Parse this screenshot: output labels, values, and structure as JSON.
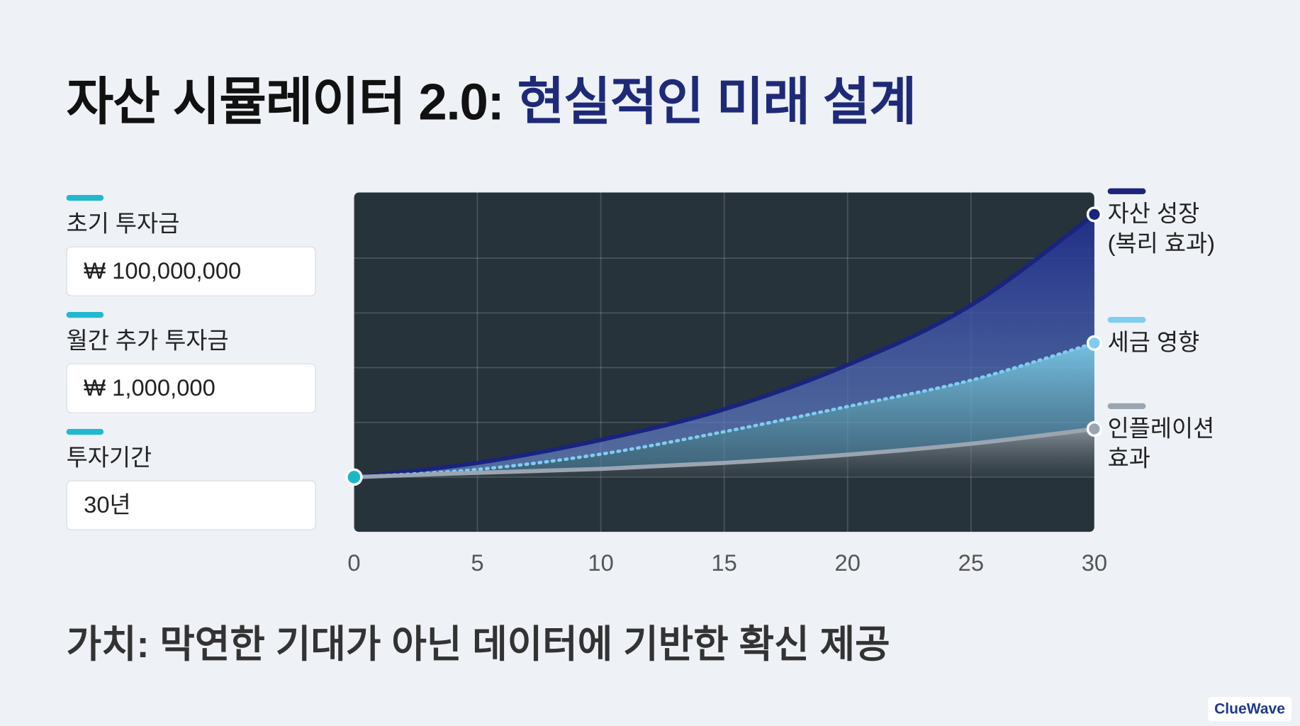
{
  "header": {
    "title_prefix": "자산 시뮬레이터 2.0:",
    "title_highlight": "현실적인 미래 설계"
  },
  "inputs": [
    {
      "label": "초기 투자금",
      "value": "₩ 100,000,000"
    },
    {
      "label": "월간 추가 투자금",
      "value": "₩ 1,000,000"
    },
    {
      "label": "투자기간",
      "value": "30년"
    }
  ],
  "chart_data": {
    "type": "line",
    "x": [
      0,
      5,
      10,
      15,
      20,
      25,
      30
    ],
    "xlim": [
      0,
      30
    ],
    "xticks": [
      0,
      5,
      10,
      15,
      20,
      25,
      30
    ],
    "ylim": [
      -1,
      5.2
    ],
    "yticks": [
      0,
      1,
      2,
      3,
      4
    ],
    "grid": true,
    "start_color": "#1ab7c9",
    "series": [
      {
        "name": "자산 성장 (복리 효과)",
        "color": "#1a237e",
        "style": "solid",
        "values": [
          0,
          0.26,
          0.68,
          1.24,
          2.05,
          3.14,
          4.8
        ]
      },
      {
        "name": "세금 영향",
        "color": "#7fcdf2",
        "style": "dotted",
        "values": [
          0,
          0.14,
          0.42,
          0.83,
          1.29,
          1.77,
          2.45
        ]
      },
      {
        "name": "인플레이션 효과",
        "color": "#9aa5b1",
        "style": "solid",
        "values": [
          0,
          0.08,
          0.15,
          0.26,
          0.41,
          0.61,
          0.88
        ]
      }
    ]
  },
  "footer": {
    "text": "가치: 막연한 기대가 아닌 데이터에 기반한 확신 제공"
  },
  "brand": "ClueWave"
}
